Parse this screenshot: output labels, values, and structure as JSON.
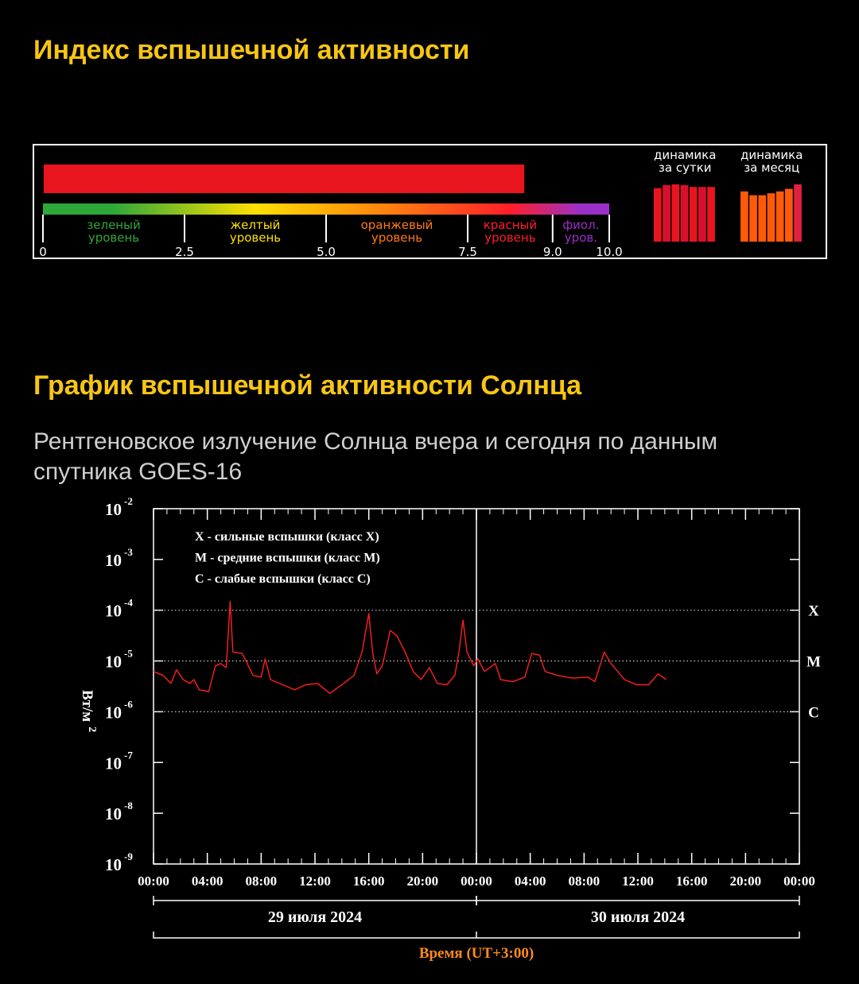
{
  "page": {
    "title": "Индекс вспышечной активности",
    "chart_title": "График вспышечной активности Солнца",
    "subtitle": [
      "Рентгеновское излучение Солнца вчера и сегодня по данным",
      "спутника GOES-16"
    ]
  },
  "chart_data": [
    {
      "type": "hbar",
      "value": 8.5,
      "color": "#e8141e",
      "xlim": [
        0,
        10
      ],
      "xticks": [
        0,
        2.5,
        {
          "value": 5,
          "label": "5.0"
        },
        7.5,
        {
          "value": 9,
          "label": "9.0"
        },
        {
          "value": 10,
          "label": "10.0"
        }
      ],
      "zones": [
        {
          "label": [
            "зеленый",
            "уровень"
          ],
          "range": [
            0,
            2.5
          ],
          "color": "#2fa83a"
        },
        {
          "label": [
            "желтый",
            "уровень"
          ],
          "range": [
            2.5,
            5
          ],
          "color": "#ffe000"
        },
        {
          "label": [
            "оранжевый",
            "уровень"
          ],
          "range": [
            5,
            7.5
          ],
          "color": "#ff7a10"
        },
        {
          "label": [
            "красный",
            "уровень"
          ],
          "range": [
            7.5,
            9
          ],
          "color": "#ff1e2a"
        },
        {
          "label": [
            "фиол.",
            "уров."
          ],
          "range": [
            9,
            10
          ],
          "color": "#9b30c8"
        }
      ]
    },
    {
      "type": "bar",
      "title": [
        "динамика",
        "за сутки"
      ],
      "ylim": [
        0,
        10
      ],
      "values": [
        8.4,
        8.9,
        9.0,
        8.9,
        8.6,
        8.6,
        8.6
      ],
      "colors": [
        "#e8141e",
        "#d8102e",
        "#e8141e",
        "#d8102e",
        "#e8141e",
        "#d8102e",
        "#e8141e"
      ]
    },
    {
      "type": "bar",
      "title": [
        "динамика",
        "за месяц"
      ],
      "ylim": [
        0,
        10
      ],
      "values": [
        7.9,
        7.3,
        7.3,
        7.6,
        7.9,
        8.3,
        9.0
      ],
      "colors": [
        "#ff5a0a",
        "#ff5a0a",
        "#ff5a0a",
        "#ff5a0a",
        "#ff5a0a",
        "#ff5a0a",
        "#e0203c"
      ]
    },
    {
      "type": "line",
      "log": true,
      "xlim": [
        0,
        48
      ],
      "ylim": [
        1e-09,
        0.01
      ],
      "xticks": [
        {
          "value": 0,
          "label": "00:00"
        },
        {
          "value": 4,
          "label": "04:00"
        },
        {
          "value": 8,
          "label": "08:00"
        },
        {
          "value": 12,
          "label": "12:00"
        },
        {
          "value": 16,
          "label": "16:00"
        },
        {
          "value": 20,
          "label": "20:00"
        },
        {
          "value": 24,
          "label": "00:00"
        },
        {
          "value": 28,
          "label": "04:00"
        },
        {
          "value": 32,
          "label": "08:00"
        },
        {
          "value": 36,
          "label": "12:00"
        },
        {
          "value": 40,
          "label": "16:00"
        },
        {
          "value": 44,
          "label": "20:00"
        },
        {
          "value": 48,
          "label": "00:00"
        }
      ],
      "yticks": [
        {
          "value": 0.01,
          "label": "10",
          "exp": "-2"
        },
        {
          "value": 0.001,
          "label": "10",
          "exp": "-3"
        },
        {
          "value": 0.0001,
          "label": "10",
          "exp": "-4"
        },
        {
          "value": 1e-05,
          "label": "10",
          "exp": "-5"
        },
        {
          "value": 1e-06,
          "label": "10",
          "exp": "-6"
        },
        {
          "value": 1e-07,
          "label": "10",
          "exp": "-7"
        },
        {
          "value": 1e-08,
          "label": "10",
          "exp": "-8"
        },
        {
          "value": 1e-09,
          "label": "10",
          "exp": "-9"
        }
      ],
      "ylabel": "Вт/м",
      "ylabel_exp": "2",
      "xlabel": "Время (UT+3:00)",
      "legend_notes": [
        "X  - сильные вспышки (класс X)",
        "M - средние вспышки (класс M)",
        "C  - слабые вспышки (класс C)"
      ],
      "levels": [
        {
          "label": "X",
          "value": 0.0001
        },
        {
          "label": "M",
          "value": 1e-05
        },
        {
          "label": "C",
          "value": 1e-06
        }
      ],
      "days": [
        {
          "label": "29 июля 2024",
          "range": [
            0,
            24
          ]
        },
        {
          "label": "30 июля 2024",
          "range": [
            24,
            48
          ]
        }
      ],
      "x": [
        0,
        0.7,
        1.3,
        1.7,
        2.2,
        2.7,
        3.0,
        3.4,
        4.1,
        4.6,
        5.0,
        5.4,
        5.7,
        5.9,
        6.6,
        7.4,
        8.0,
        8.3,
        8.7,
        9.6,
        10.5,
        11.3,
        12.2,
        13.1,
        14.0,
        14.9,
        15.5,
        16.0,
        16.3,
        16.6,
        17.0,
        17.6,
        18.1,
        18.7,
        19.3,
        19.9,
        20.5,
        21.1,
        21.8,
        22.4,
        22.7,
        23.0,
        23.3,
        23.8,
        24.1,
        24.6,
        25.4,
        25.8,
        26.7,
        27.6,
        28.1,
        28.7,
        29.1,
        30.0,
        31.1,
        32.3,
        32.8,
        33.5,
        34.0,
        34.5,
        35.0,
        35.9,
        36.8,
        37.5,
        38.1
      ],
      "series": [
        {
          "color": "#ff1f1f",
          "values": [
            6.2e-06,
            5.2e-06,
            3.6e-06,
            6.7e-06,
            4.3e-06,
            3.6e-06,
            4.3e-06,
            2.7e-06,
            2.5e-06,
            8e-06,
            8.9e-06,
            7.4e-06,
            0.00015,
            1.5e-05,
            1.4e-05,
            5.2e-06,
            4.8e-06,
            1.1e-05,
            4.3e-06,
            3.4e-06,
            2.7e-06,
            3.4e-06,
            3.6e-06,
            2.3e-06,
            3.4e-06,
            5.2e-06,
            1.5e-05,
            8.6e-05,
            1.4e-05,
            5.6e-06,
            8e-06,
            4e-05,
            3.1e-05,
            1.5e-05,
            6.2e-06,
            4.3e-06,
            7.4e-06,
            3.6e-06,
            3.4e-06,
            5.2e-06,
            1.5e-05,
            6.4e-05,
            1.5e-05,
            8e-06,
            1.1e-05,
            6.2e-06,
            8.9e-06,
            4.3e-06,
            3.9e-06,
            4.8e-06,
            1.4e-05,
            1.3e-05,
            6.2e-06,
            5.2e-06,
            4.6e-06,
            4.8e-06,
            3.9e-06,
            1.5e-05,
            8.9e-06,
            6.2e-06,
            4.3e-06,
            3.4e-06,
            3.4e-06,
            5.6e-06,
            4.3e-06
          ]
        }
      ]
    }
  ]
}
